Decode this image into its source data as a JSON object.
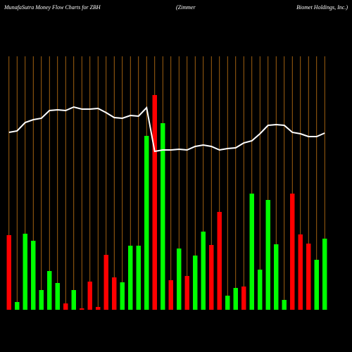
{
  "chart_data": {
    "type": "bar-line",
    "title": "MunafaSutra  Money Flow  Charts for ZBH",
    "subtitle_left": "(Zimmer",
    "subtitle_right": "Biomet Holdings,  Inc.)",
    "values": [
      106,
      11,
      108,
      98,
      28,
      55,
      38,
      9,
      28,
      2,
      40,
      4,
      78,
      46,
      39,
      91,
      91,
      247,
      305,
      265,
      42,
      87,
      48,
      77,
      111,
      92,
      139,
      20,
      31,
      33,
      165,
      57,
      156,
      93,
      14,
      165,
      107,
      94,
      71,
      101
    ],
    "colors": [
      "#ff0000",
      "#00ff00",
      "#00ff00",
      "#00ff00",
      "#00ff00",
      "#00ff00",
      "#00ff00",
      "#ff0000",
      "#00ff00",
      "#ff0000",
      "#ff0000",
      "#ff0000",
      "#ff0000",
      "#ff0000",
      "#00ff00",
      "#00ff00",
      "#00ff00",
      "#00ff00",
      "#ff0000",
      "#00ff00",
      "#ff0000",
      "#00ff00",
      "#ff0000",
      "#00ff00",
      "#00ff00",
      "#ff0000",
      "#ff0000",
      "#00ff00",
      "#00ff00",
      "#ff0000",
      "#00ff00",
      "#00ff00",
      "#00ff00",
      "#00ff00",
      "#00ff00",
      "#ff0000",
      "#ff0000",
      "#ff0000",
      "#00ff00",
      "#00ff00"
    ],
    "line_values": [
      252,
      254,
      266,
      270,
      272,
      283,
      284,
      283,
      288,
      285,
      285,
      286,
      280,
      273,
      272,
      276,
      275,
      287,
      225,
      227,
      227,
      228,
      227,
      232,
      234,
      232,
      227,
      229,
      230,
      237,
      240,
      250,
      262,
      263,
      262,
      252,
      250,
      246,
      246,
      251
    ],
    "line_color": "#ffffff",
    "grid_color": "#c87814",
    "ylim": [
      0,
      360
    ]
  }
}
